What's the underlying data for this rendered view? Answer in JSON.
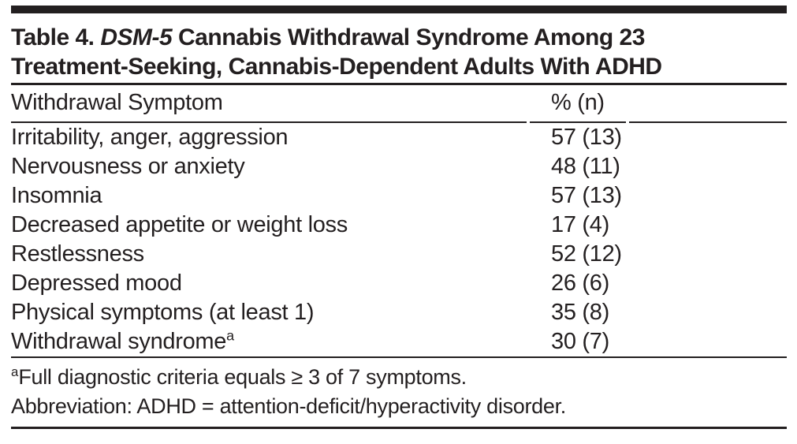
{
  "ink_color": "#231f20",
  "table": {
    "title": {
      "prefix": "Table 4.",
      "italic_segment": "DSM-5",
      "line1_rest": "Cannabis Withdrawal Syndrome Among 23",
      "line2": "Treatment-Seeking, Cannabis-Dependent Adults With ADHD"
    },
    "columns": {
      "symptom": "Withdrawal Symptom",
      "value": "% (n)"
    },
    "rows": [
      {
        "symptom": "Irritability, anger, aggression",
        "sup": "",
        "value": "57 (13)"
      },
      {
        "symptom": "Nervousness or anxiety",
        "sup": "",
        "value": "48 (11)"
      },
      {
        "symptom": "Insomnia",
        "sup": "",
        "value": "57 (13)"
      },
      {
        "symptom": "Decreased appetite or weight loss",
        "sup": "",
        "value": "17 (4)"
      },
      {
        "symptom": "Restlessness",
        "sup": "",
        "value": "52 (12)"
      },
      {
        "symptom": "Depressed mood",
        "sup": "",
        "value": "26 (6)"
      },
      {
        "symptom": "Physical symptoms (at least 1)",
        "sup": "",
        "value": "35 (8)"
      },
      {
        "symptom": "Withdrawal syndrome",
        "sup": "a",
        "value": "30 (7)"
      }
    ],
    "footnotes": [
      {
        "sup": "a",
        "text": "Full diagnostic criteria equals ≥ 3 of 7 symptoms."
      },
      {
        "sup": "",
        "text": "Abbreviation: ADHD = attention-deficit/hyperactivity disorder."
      }
    ]
  },
  "chart_data": {
    "type": "table",
    "title": "Table 4. DSM-5 Cannabis Withdrawal Syndrome Among 23 Treatment-Seeking, Cannabis-Dependent Adults With ADHD",
    "columns": [
      "Withdrawal Symptom",
      "% (n)"
    ],
    "rows": [
      [
        "Irritability, anger, aggression",
        "57 (13)"
      ],
      [
        "Nervousness or anxiety",
        "48 (11)"
      ],
      [
        "Insomnia",
        "57 (13)"
      ],
      [
        "Decreased appetite or weight loss",
        "17 (4)"
      ],
      [
        "Restlessness",
        "52 (12)"
      ],
      [
        "Depressed mood",
        "26 (6)"
      ],
      [
        "Physical symptoms (at least 1)",
        "35 (8)"
      ],
      [
        "Withdrawal syndrome [a]",
        "30 (7)"
      ]
    ],
    "percent_values": [
      57,
      48,
      57,
      17,
      52,
      26,
      35,
      30
    ],
    "n_values": [
      13,
      11,
      13,
      4,
      12,
      6,
      8,
      7
    ],
    "sample_size": 23
  }
}
